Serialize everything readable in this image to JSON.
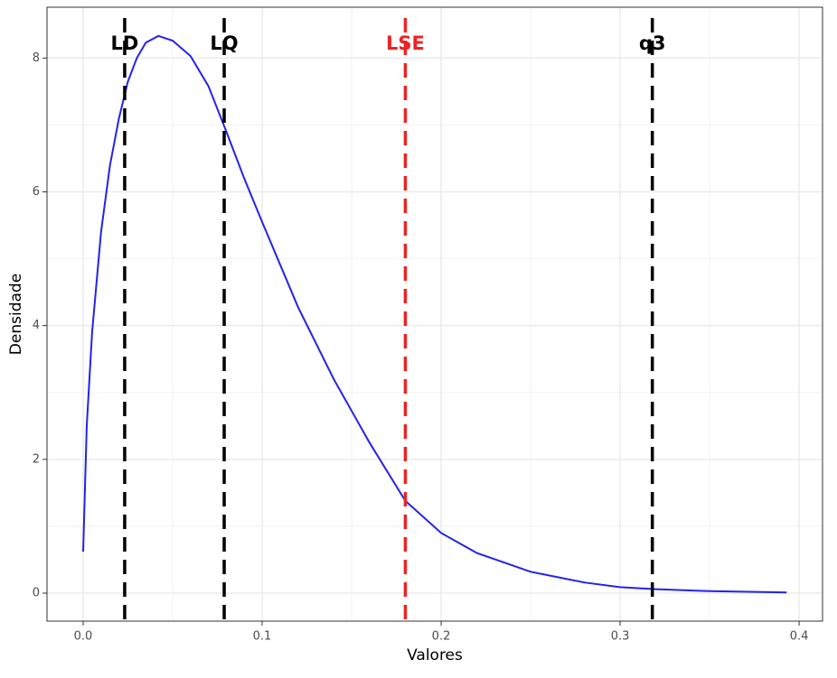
{
  "chart_data": {
    "type": "line",
    "x_label": "Valores",
    "y_label": "Densidade",
    "x": [
      0,
      0.002,
      0.005,
      0.01,
      0.015,
      0.02,
      0.025,
      0.03,
      0.035,
      0.042,
      0.05,
      0.06,
      0.07,
      0.08,
      0.09,
      0.1,
      0.12,
      0.14,
      0.16,
      0.18,
      0.2,
      0.22,
      0.25,
      0.28,
      0.3,
      0.32,
      0.35,
      0.393
    ],
    "series": [
      {
        "color": "#2222ee",
        "values": [
          0.62,
          2.5,
          3.9,
          5.4,
          6.4,
          7.1,
          7.65,
          8.0,
          8.23,
          8.33,
          8.26,
          8.03,
          7.58,
          6.9,
          6.2,
          5.55,
          4.28,
          3.2,
          2.25,
          1.38,
          0.9,
          0.6,
          0.32,
          0.16,
          0.09,
          0.06,
          0.03,
          0.01
        ]
      }
    ],
    "vlines": [
      {
        "label": "LD",
        "x": 0.0232,
        "color": "#000000"
      },
      {
        "label": "LQ",
        "x": 0.0788,
        "color": "#000000"
      },
      {
        "label": "LSE",
        "x": 0.18,
        "color": "#ee2222"
      },
      {
        "label": "q3",
        "x": 0.318,
        "color": "#000000"
      }
    ],
    "xlim": [
      -0.0202,
      0.4131
    ],
    "ylim": [
      -0.418,
      8.76
    ],
    "xticks": [
      {
        "value": 0,
        "label": "0.0"
      },
      0.1,
      0.2,
      0.3,
      0.4
    ],
    "yticks": [
      0,
      2,
      4,
      6,
      8
    ],
    "grid": true
  }
}
